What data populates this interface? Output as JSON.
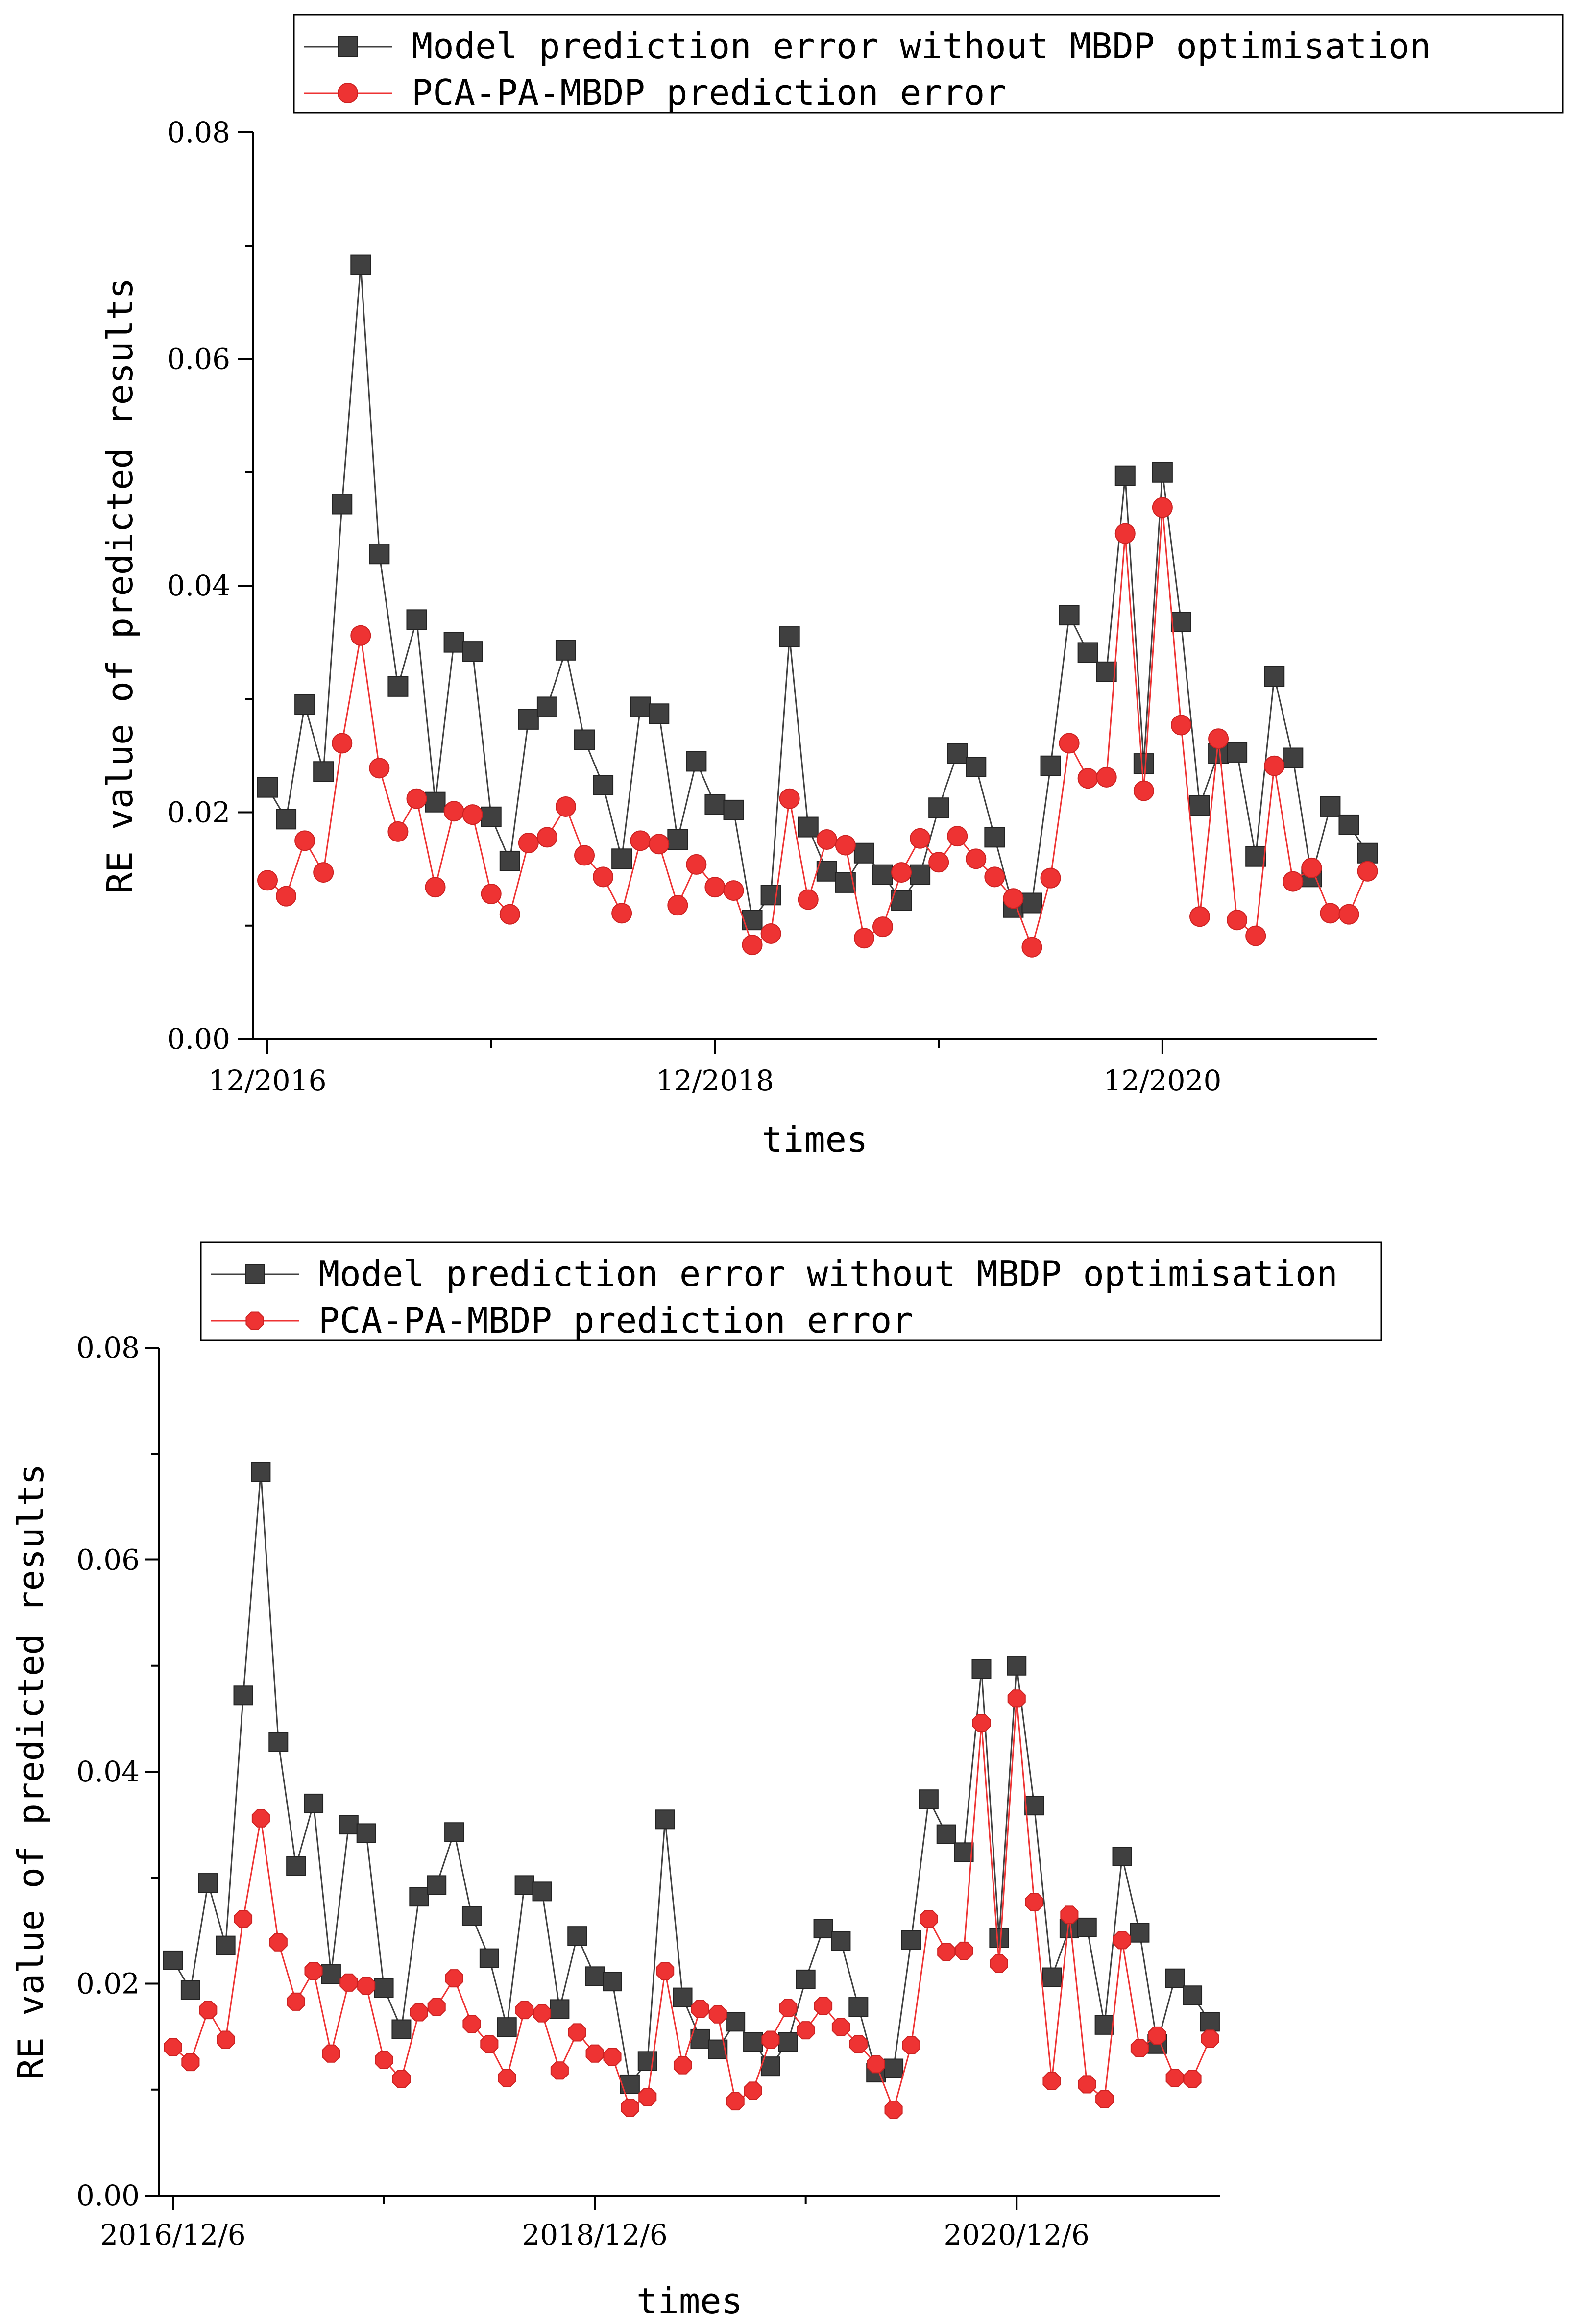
{
  "chart_data": [
    {
      "type": "line",
      "panel": "top",
      "title": "",
      "xlabel": "times",
      "ylabel": "RE value of predicted results",
      "ylim": [
        0,
        0.08
      ],
      "yticks": [
        "0.00",
        "0.02",
        "0.04",
        "0.06",
        "0.08"
      ],
      "xtick_labels": [
        "12/2016",
        "12/2018",
        "12/2020"
      ],
      "xtick_positions": [
        0,
        24,
        48
      ],
      "grid": false,
      "legend_position": "top",
      "x": [
        0,
        1,
        2,
        3,
        4,
        5,
        6,
        7,
        8,
        9,
        10,
        11,
        12,
        13,
        14,
        15,
        16,
        17,
        18,
        19,
        20,
        21,
        22,
        23,
        24,
        25,
        26,
        27,
        28,
        29,
        30,
        31,
        32,
        33,
        34,
        35,
        36,
        37,
        38,
        39,
        40,
        41,
        42,
        43,
        44,
        45,
        46,
        47,
        48,
        49,
        50,
        51,
        52,
        53,
        54,
        55,
        56,
        57,
        58,
        59
      ],
      "series": [
        {
          "name": "Model prediction error without MBDP optimisation",
          "color": "#404040",
          "marker": "square",
          "values": [
            0.0222,
            0.0194,
            0.0295,
            0.0236,
            0.0472,
            0.0683,
            0.0428,
            0.0311,
            0.037,
            0.0209,
            0.035,
            0.0342,
            0.0196,
            0.0157,
            0.0282,
            0.0293,
            0.0343,
            0.0264,
            0.0224,
            0.0159,
            0.0293,
            0.0287,
            0.0176,
            0.0245,
            0.0207,
            0.0202,
            0.0105,
            0.0127,
            0.0355,
            0.0187,
            0.0148,
            0.0138,
            0.0164,
            0.0145,
            0.0122,
            0.0145,
            0.0204,
            0.0252,
            0.024,
            0.0178,
            0.0116,
            0.012,
            0.0241,
            0.0374,
            0.0341,
            0.0324,
            0.0497,
            0.0243,
            0.05,
            0.0368,
            0.0206,
            0.0252,
            0.0253,
            0.0161,
            0.032,
            0.0248,
            0.0143,
            0.0205,
            0.0189,
            0.0164
          ]
        },
        {
          "name": "PCA-PA-MBDP prediction error",
          "color": "#ee3333",
          "marker": "circle",
          "values": [
            0.014,
            0.0126,
            0.0175,
            0.0147,
            0.0261,
            0.0356,
            0.0239,
            0.0183,
            0.0212,
            0.0134,
            0.0201,
            0.0198,
            0.0128,
            0.011,
            0.0173,
            0.0178,
            0.0205,
            0.0162,
            0.0143,
            0.0111,
            0.0175,
            0.0172,
            0.0118,
            0.0154,
            0.0134,
            0.0131,
            0.0083,
            0.0093,
            0.0212,
            0.0123,
            0.0176,
            0.0171,
            0.0089,
            0.0099,
            0.0147,
            0.0177,
            0.0156,
            0.0179,
            0.0159,
            0.0143,
            0.0124,
            0.0081,
            0.0142,
            0.0261,
            0.023,
            0.0231,
            0.0446,
            0.0219,
            0.0469,
            0.0277,
            0.0108,
            0.0265,
            0.0105,
            0.0091,
            0.0241,
            0.0139,
            0.0151,
            0.0111,
            0.011,
            0.0148
          ]
        }
      ]
    },
    {
      "type": "line",
      "panel": "bottom",
      "title": "",
      "xlabel": "times",
      "ylabel": "RE value of predicted results",
      "ylim": [
        0,
        0.08
      ],
      "yticks": [
        "0.00",
        "0.02",
        "0.04",
        "0.06",
        "0.08"
      ],
      "xtick_labels": [
        "2016/12/6",
        "2018/12/6",
        "2020/12/6"
      ],
      "xtick_positions": [
        0,
        24,
        48
      ],
      "grid": false,
      "legend_position": "top",
      "x": [
        0,
        1,
        2,
        3,
        4,
        5,
        6,
        7,
        8,
        9,
        10,
        11,
        12,
        13,
        14,
        15,
        16,
        17,
        18,
        19,
        20,
        21,
        22,
        23,
        24,
        25,
        26,
        27,
        28,
        29,
        30,
        31,
        32,
        33,
        34,
        35,
        36,
        37,
        38,
        39,
        40,
        41,
        42,
        43,
        44,
        45,
        46,
        47,
        48,
        49,
        50,
        51,
        52,
        53,
        54,
        55,
        56,
        57,
        58,
        59
      ],
      "series": [
        {
          "name": "Model prediction error without MBDP optimisation",
          "color": "#404040",
          "marker": "square",
          "values": [
            0.0222,
            0.0194,
            0.0295,
            0.0236,
            0.0472,
            0.0683,
            0.0428,
            0.0311,
            0.037,
            0.0209,
            0.035,
            0.0342,
            0.0196,
            0.0157,
            0.0282,
            0.0293,
            0.0343,
            0.0264,
            0.0224,
            0.0159,
            0.0293,
            0.0287,
            0.0176,
            0.0245,
            0.0207,
            0.0202,
            0.0105,
            0.0127,
            0.0355,
            0.0187,
            0.0148,
            0.0138,
            0.0164,
            0.0145,
            0.0122,
            0.0145,
            0.0204,
            0.0252,
            0.024,
            0.0178,
            0.0116,
            0.012,
            0.0241,
            0.0374,
            0.0341,
            0.0324,
            0.0497,
            0.0243,
            0.05,
            0.0368,
            0.0206,
            0.0252,
            0.0253,
            0.0161,
            0.032,
            0.0248,
            0.0143,
            0.0205,
            0.0189,
            0.0164
          ]
        },
        {
          "name": "PCA-PA-MBDP prediction error",
          "color": "#ee3333",
          "marker": "octagon",
          "values": [
            0.014,
            0.0126,
            0.0175,
            0.0147,
            0.0261,
            0.0356,
            0.0239,
            0.0183,
            0.0212,
            0.0134,
            0.0201,
            0.0198,
            0.0128,
            0.011,
            0.0173,
            0.0178,
            0.0205,
            0.0162,
            0.0143,
            0.0111,
            0.0175,
            0.0172,
            0.0118,
            0.0154,
            0.0134,
            0.0131,
            0.0083,
            0.0093,
            0.0212,
            0.0123,
            0.0176,
            0.0171,
            0.0089,
            0.0099,
            0.0147,
            0.0177,
            0.0156,
            0.0179,
            0.0159,
            0.0143,
            0.0124,
            0.0081,
            0.0142,
            0.0261,
            0.023,
            0.0231,
            0.0446,
            0.0219,
            0.0469,
            0.0277,
            0.0108,
            0.0265,
            0.0105,
            0.0091,
            0.0241,
            0.0139,
            0.0151,
            0.0111,
            0.011,
            0.0148
          ]
        }
      ]
    }
  ]
}
